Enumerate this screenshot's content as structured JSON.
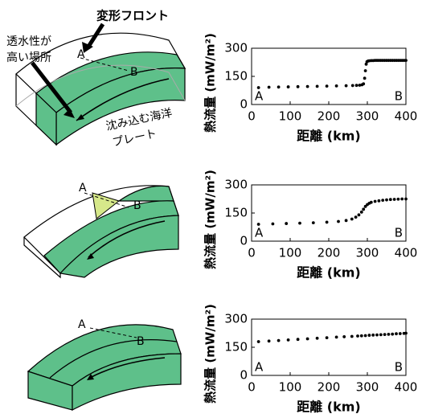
{
  "chart_data": [
    {
      "type": "scatter",
      "color": "#000000",
      "x": [
        18,
        45,
        70,
        95,
        120,
        145,
        170,
        195,
        220,
        245,
        262,
        272,
        280,
        286,
        290,
        293,
        295,
        297,
        299,
        302,
        305,
        310,
        315,
        320,
        325,
        330,
        335,
        340,
        345,
        350,
        355,
        360,
        365,
        370,
        375,
        380,
        385,
        390,
        395,
        400
      ],
      "values": [
        90,
        92,
        93,
        94,
        95,
        96,
        97,
        98,
        99,
        100,
        101,
        102,
        103,
        105,
        110,
        140,
        180,
        215,
        228,
        232,
        233,
        234,
        234,
        235,
        235,
        235,
        235,
        235,
        235,
        235,
        235,
        235,
        235,
        235,
        235,
        235,
        235,
        235,
        235,
        235
      ],
      "xlim": [
        0,
        400
      ],
      "ylim": [
        0,
        300
      ],
      "xticks": [
        0,
        100,
        200,
        300,
        400
      ],
      "yticks": [
        0,
        150,
        300
      ],
      "x_label": "距離 (km)",
      "y_label": "熱流量 (mW/m²)",
      "start_label": "A",
      "end_label": "B"
    },
    {
      "type": "scatter",
      "color": "#000000",
      "x": [
        18,
        55,
        90,
        125,
        160,
        195,
        225,
        245,
        260,
        270,
        278,
        285,
        290,
        295,
        300,
        305,
        310,
        320,
        330,
        340,
        350,
        360,
        370,
        380,
        390,
        400
      ],
      "values": [
        90,
        92,
        94,
        96,
        98,
        101,
        105,
        110,
        118,
        128,
        140,
        155,
        170,
        185,
        195,
        202,
        207,
        212,
        215,
        218,
        220,
        222,
        223,
        224,
        225,
        225
      ],
      "xlim": [
        0,
        400
      ],
      "ylim": [
        0,
        300
      ],
      "xticks": [
        0,
        100,
        200,
        300,
        400
      ],
      "yticks": [
        0,
        150,
        300
      ],
      "x_label": "距離 (km)",
      "y_label": "熱流量 (mW/m²)",
      "start_label": "A",
      "end_label": "B"
    },
    {
      "type": "scatter",
      "color": "#000000",
      "x": [
        18,
        45,
        70,
        95,
        120,
        145,
        170,
        195,
        220,
        240,
        260,
        275,
        285,
        295,
        305,
        315,
        325,
        335,
        345,
        355,
        365,
        375,
        385,
        395,
        400
      ],
      "values": [
        180,
        183,
        186,
        189,
        192,
        195,
        198,
        201,
        204,
        206,
        208,
        210,
        211,
        212,
        214,
        215,
        216,
        217,
        218,
        219,
        220,
        222,
        223,
        224,
        225
      ],
      "xlim": [
        0,
        400
      ],
      "ylim": [
        0,
        300
      ],
      "xticks": [
        0,
        100,
        200,
        300,
        400
      ],
      "yticks": [
        0,
        150,
        300
      ],
      "x_label": "距離 (km)",
      "y_label": "熱流量 (mW/m²)",
      "start_label": "A",
      "end_label": "B"
    }
  ],
  "diagrams": {
    "deformation_front": "変形フロント",
    "permeable_zone": [
      "透水性が",
      "高い場所"
    ],
    "subducting_plate": [
      "沈み込む海洋",
      "プレート"
    ],
    "points": [
      [
        "A",
        "B"
      ],
      [
        "A",
        "B"
      ],
      [
        "A",
        "B"
      ]
    ]
  }
}
